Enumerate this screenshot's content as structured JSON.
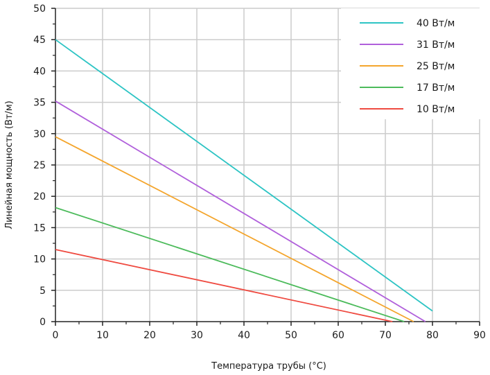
{
  "chart_data": {
    "type": "line",
    "xlabel": "Температура трубы (°C)",
    "ylabel": "Линейная мощность (Вт/м)",
    "xlim": [
      0,
      90
    ],
    "ylim": [
      0,
      50
    ],
    "xticks": [
      0,
      10,
      20,
      30,
      40,
      50,
      60,
      70,
      80,
      90
    ],
    "yticks": [
      0,
      5,
      10,
      15,
      20,
      25,
      30,
      35,
      40,
      45,
      50
    ],
    "grid": true,
    "legend_position": "top-right",
    "series": [
      {
        "name": "40 Вт/м",
        "color": "#2cc4c4",
        "x": [
          0,
          80
        ],
        "y": [
          45,
          1.7
        ]
      },
      {
        "name": "31 Вт/м",
        "color": "#b05fdb",
        "x": [
          0,
          78.5
        ],
        "y": [
          35.2,
          0
        ]
      },
      {
        "name": "25 Вт/м",
        "color": "#f4a52c",
        "x": [
          0,
          76
        ],
        "y": [
          29.5,
          0
        ]
      },
      {
        "name": "17 Вт/м",
        "color": "#4cbb5b",
        "x": [
          0,
          74
        ],
        "y": [
          18.2,
          0
        ]
      },
      {
        "name": "10 Вт/м",
        "color": "#ef4a40",
        "x": [
          0,
          71.5
        ],
        "y": [
          11.5,
          0
        ]
      }
    ]
  }
}
